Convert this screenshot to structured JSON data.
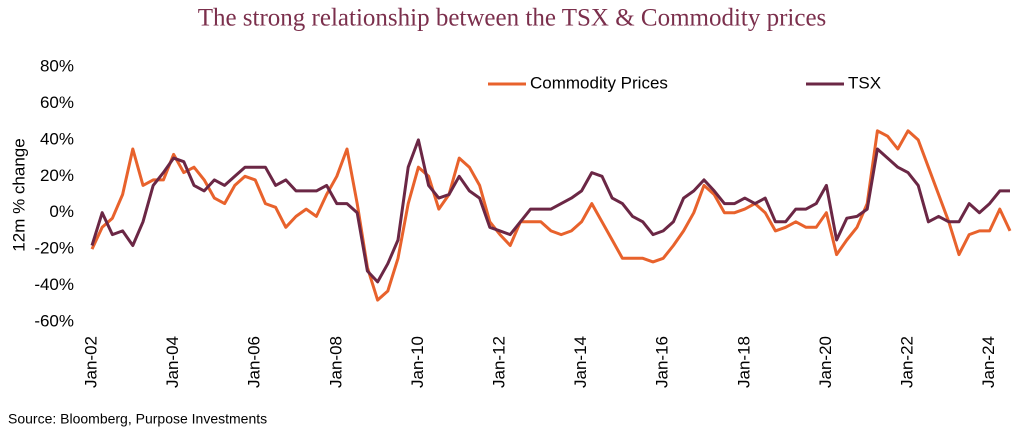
{
  "chart_data": {
    "type": "line",
    "title": "The strong relationship between the TSX & Commodity prices",
    "y_label": "12m % change",
    "source": "Source: Bloomberg, Purpose Investments",
    "x": [
      2002,
      2002.25,
      2002.5,
      2002.75,
      2003,
      2003.25,
      2003.5,
      2003.75,
      2004,
      2004.25,
      2004.5,
      2004.75,
      2005,
      2005.25,
      2005.5,
      2005.75,
      2006,
      2006.25,
      2006.5,
      2006.75,
      2007,
      2007.25,
      2007.5,
      2007.75,
      2008,
      2008.25,
      2008.5,
      2008.75,
      2009,
      2009.25,
      2009.5,
      2009.75,
      2010,
      2010.25,
      2010.5,
      2010.75,
      2011,
      2011.25,
      2011.5,
      2011.75,
      2012,
      2012.25,
      2012.5,
      2012.75,
      2013,
      2013.25,
      2013.5,
      2013.75,
      2014,
      2014.25,
      2014.5,
      2014.75,
      2015,
      2015.25,
      2015.5,
      2015.75,
      2016,
      2016.25,
      2016.5,
      2016.75,
      2017,
      2017.25,
      2017.5,
      2017.75,
      2018,
      2018.25,
      2018.5,
      2018.75,
      2019,
      2019.25,
      2019.5,
      2019.75,
      2020,
      2020.25,
      2020.5,
      2020.75,
      2021,
      2021.25,
      2021.5,
      2021.75,
      2022,
      2022.25,
      2022.5,
      2022.75,
      2023,
      2023.25,
      2023.5,
      2023.75,
      2024,
      2024.25,
      2024.5
    ],
    "series": [
      {
        "name": "Commodity Prices",
        "color": "#e8622c",
        "values": [
          -20,
          -8,
          -3,
          10,
          35,
          15,
          18,
          18,
          32,
          22,
          25,
          18,
          8,
          5,
          15,
          20,
          18,
          5,
          3,
          -8,
          -2,
          2,
          -2,
          10,
          20,
          35,
          5,
          -30,
          -48,
          -43,
          -25,
          5,
          25,
          20,
          2,
          10,
          30,
          25,
          15,
          -5,
          -12,
          -18,
          -5,
          -5,
          -5,
          -10,
          -12,
          -10,
          -5,
          5,
          -5,
          -15,
          -25,
          -25,
          -25,
          -27,
          -25,
          -18,
          -10,
          0,
          15,
          10,
          0,
          0,
          2,
          5,
          0,
          -10,
          -8,
          -5,
          -8,
          -8,
          0,
          -23,
          -15,
          -8,
          5,
          45,
          42,
          35,
          45,
          40,
          25,
          10,
          -5,
          -23,
          -12,
          -10,
          -10,
          2,
          -10
        ]
      },
      {
        "name": "TSX",
        "color": "#6b2745",
        "values": [
          -18,
          0,
          -12,
          -10,
          -18,
          -5,
          15,
          22,
          30,
          28,
          15,
          12,
          18,
          15,
          20,
          25,
          25,
          25,
          15,
          18,
          12,
          12,
          12,
          15,
          5,
          5,
          0,
          -32,
          -38,
          -28,
          -15,
          25,
          40,
          15,
          8,
          10,
          20,
          12,
          8,
          -8,
          -10,
          -12,
          -5,
          2,
          2,
          2,
          5,
          8,
          12,
          22,
          20,
          8,
          5,
          -2,
          -5,
          -12,
          -10,
          -5,
          8,
          12,
          18,
          12,
          5,
          5,
          8,
          5,
          8,
          -5,
          -5,
          2,
          2,
          5,
          15,
          -15,
          -3,
          -2,
          2,
          35,
          30,
          25,
          22,
          15,
          -5,
          -2,
          -5,
          -5,
          5,
          0,
          5,
          12,
          12
        ]
      }
    ],
    "xlim": [
      2002,
      2024.5
    ],
    "xticks": [
      {
        "value": 2002,
        "label": "Jan-02"
      },
      {
        "value": 2004,
        "label": "Jan-04"
      },
      {
        "value": 2006,
        "label": "Jan-06"
      },
      {
        "value": 2008,
        "label": "Jan-08"
      },
      {
        "value": 2010,
        "label": "Jan-10"
      },
      {
        "value": 2012,
        "label": "Jan-12"
      },
      {
        "value": 2014,
        "label": "Jan-14"
      },
      {
        "value": 2016,
        "label": "Jan-16"
      },
      {
        "value": 2018,
        "label": "Jan-18"
      },
      {
        "value": 2020,
        "label": "Jan-20"
      },
      {
        "value": 2022,
        "label": "Jan-22"
      },
      {
        "value": 2024,
        "label": "Jan-24"
      }
    ],
    "ylim": [
      -60,
      80
    ],
    "yticks": [
      {
        "value": -60,
        "label": "-60%"
      },
      {
        "value": -40,
        "label": "-40%"
      },
      {
        "value": -20,
        "label": "-20%"
      },
      {
        "value": 0,
        "label": "0%"
      },
      {
        "value": 20,
        "label": "20%"
      },
      {
        "value": 40,
        "label": "40%"
      },
      {
        "value": 60,
        "label": "60%"
      },
      {
        "value": 80,
        "label": "80%"
      }
    ],
    "grid": false
  }
}
